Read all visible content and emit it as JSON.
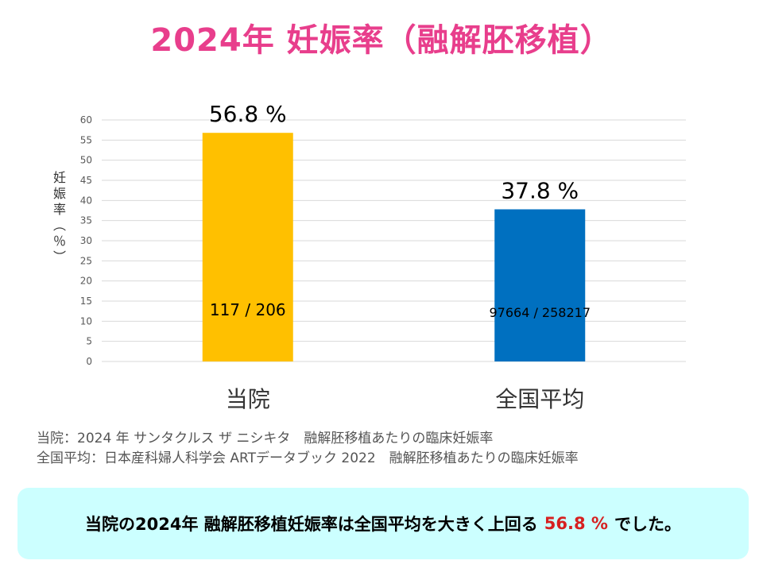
{
  "title": "2024年 妊娠率（融解胚移植）",
  "chart_data": {
    "type": "bar",
    "categories": [
      "当院",
      "全国平均"
    ],
    "values": [
      56.8,
      37.8
    ],
    "colors": [
      "#ffc000",
      "#0070c0"
    ],
    "value_labels": [
      "56.8  %",
      "37.8 %"
    ],
    "count_labels": [
      "117 / 206",
      "97664 / 258217"
    ],
    "ylabel": "妊娠率（％）",
    "ylabel_chars": [
      "妊",
      "娠",
      "率",
      "︵",
      "％",
      "︶"
    ],
    "ylim": [
      0,
      60
    ],
    "yticks": [
      0,
      5,
      10,
      15,
      20,
      25,
      30,
      35,
      40,
      45,
      50,
      55,
      60
    ],
    "grid": true
  },
  "notes": {
    "line1": "当院：2024 年 サンタクルス ザ ニシキタ　融解胚移植あたりの臨床妊娠率",
    "line2": "全国平均：日本産科婦人科学会 ARTデータブック 2022　融解胚移植あたりの臨床妊娠率"
  },
  "summary": {
    "before": "当院の2024年 融解胚移植妊娠率は全国平均を大きく上回る",
    "highlight": "56.8 %",
    "after": "でした。"
  }
}
